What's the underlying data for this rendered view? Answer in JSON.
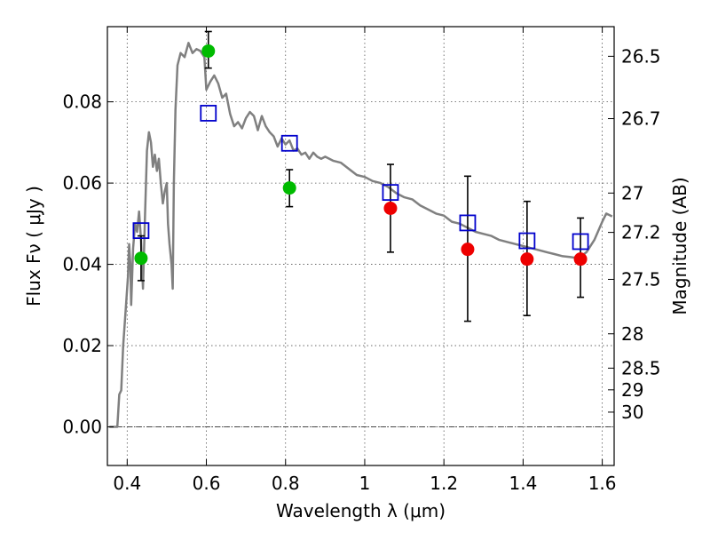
{
  "chart_data": {
    "type": "scatter",
    "xlabel": "Wavelength  λ (μm)",
    "ylabel": "Flux  Fν  ( μJy )",
    "y2label": "Magnitude (AB)",
    "xlim": [
      0.35,
      1.63
    ],
    "ylim": [
      -0.0095,
      0.0985
    ],
    "grid": true,
    "x_ticks": [
      0.4,
      0.6,
      0.8,
      1.0,
      1.2,
      1.4,
      1.6
    ],
    "x_tick_labels": [
      "0.4",
      "0.6",
      "0.8",
      "1",
      "1.2",
      "1.4",
      "1.6"
    ],
    "y_ticks": [
      0.0,
      0.02,
      0.04,
      0.06,
      0.08
    ],
    "y_tick_labels": [
      "0.00",
      "0.02",
      "0.04",
      "0.06",
      "0.08"
    ],
    "y2_ticks": [
      {
        "label": "26.5",
        "value": 26.5
      },
      {
        "label": "26.7",
        "value": 26.7
      },
      {
        "label": "27",
        "value": 27.0
      },
      {
        "label": "27.2",
        "value": 27.2
      },
      {
        "label": "27.5",
        "value": 27.5
      },
      {
        "label": "28",
        "value": 28.0
      },
      {
        "label": "28.5",
        "value": 28.5
      },
      {
        "label": "29",
        "value": 29.0
      },
      {
        "label": "30",
        "value": 30.0
      }
    ],
    "colors": {
      "model": "#808080",
      "model_points": "#0000cc",
      "green_points": "#00bb00",
      "red_points": "#ee0000",
      "errorbar": "#000000",
      "grid": "#555555"
    },
    "series": [
      {
        "kind": "line",
        "color": "#808080",
        "points": [
          [
            0.355,
            0.0
          ],
          [
            0.375,
            0.0
          ],
          [
            0.38,
            0.008
          ],
          [
            0.385,
            0.009
          ],
          [
            0.39,
            0.02
          ],
          [
            0.397,
            0.03
          ],
          [
            0.402,
            0.037
          ],
          [
            0.405,
            0.045
          ],
          [
            0.408,
            0.04
          ],
          [
            0.41,
            0.03
          ],
          [
            0.415,
            0.044
          ],
          [
            0.42,
            0.05
          ],
          [
            0.425,
            0.048
          ],
          [
            0.43,
            0.053
          ],
          [
            0.435,
            0.046
          ],
          [
            0.44,
            0.034
          ],
          [
            0.445,
            0.052
          ],
          [
            0.45,
            0.068
          ],
          [
            0.455,
            0.0725
          ],
          [
            0.46,
            0.07
          ],
          [
            0.465,
            0.064
          ],
          [
            0.47,
            0.067
          ],
          [
            0.475,
            0.063
          ],
          [
            0.48,
            0.066
          ],
          [
            0.485,
            0.06
          ],
          [
            0.49,
            0.055
          ],
          [
            0.495,
            0.058
          ],
          [
            0.5,
            0.06
          ],
          [
            0.503,
            0.05
          ],
          [
            0.507,
            0.045
          ],
          [
            0.512,
            0.04
          ],
          [
            0.515,
            0.034
          ],
          [
            0.518,
            0.06
          ],
          [
            0.522,
            0.078
          ],
          [
            0.527,
            0.089
          ],
          [
            0.535,
            0.092
          ],
          [
            0.545,
            0.091
          ],
          [
            0.555,
            0.0945
          ],
          [
            0.565,
            0.092
          ],
          [
            0.575,
            0.093
          ],
          [
            0.585,
            0.0925
          ],
          [
            0.595,
            0.091
          ],
          [
            0.6,
            0.083
          ],
          [
            0.61,
            0.085
          ],
          [
            0.62,
            0.0865
          ],
          [
            0.63,
            0.0845
          ],
          [
            0.64,
            0.081
          ],
          [
            0.65,
            0.082
          ],
          [
            0.66,
            0.077
          ],
          [
            0.67,
            0.074
          ],
          [
            0.68,
            0.075
          ],
          [
            0.69,
            0.0735
          ],
          [
            0.7,
            0.076
          ],
          [
            0.71,
            0.0775
          ],
          [
            0.72,
            0.0765
          ],
          [
            0.73,
            0.073
          ],
          [
            0.74,
            0.0765
          ],
          [
            0.75,
            0.074
          ],
          [
            0.76,
            0.0725
          ],
          [
            0.77,
            0.0715
          ],
          [
            0.78,
            0.069
          ],
          [
            0.79,
            0.071
          ],
          [
            0.8,
            0.0695
          ],
          [
            0.81,
            0.0705
          ],
          [
            0.82,
            0.068
          ],
          [
            0.83,
            0.0685
          ],
          [
            0.84,
            0.067
          ],
          [
            0.85,
            0.0675
          ],
          [
            0.86,
            0.066
          ],
          [
            0.87,
            0.0675
          ],
          [
            0.88,
            0.0665
          ],
          [
            0.89,
            0.066
          ],
          [
            0.9,
            0.0665
          ],
          [
            0.92,
            0.0655
          ],
          [
            0.94,
            0.065
          ],
          [
            0.96,
            0.0635
          ],
          [
            0.98,
            0.062
          ],
          [
            1.0,
            0.0615
          ],
          [
            1.02,
            0.0605
          ],
          [
            1.04,
            0.06
          ],
          [
            1.06,
            0.059
          ],
          [
            1.08,
            0.0575
          ],
          [
            1.1,
            0.0565
          ],
          [
            1.12,
            0.056
          ],
          [
            1.14,
            0.0545
          ],
          [
            1.16,
            0.0535
          ],
          [
            1.18,
            0.0525
          ],
          [
            1.2,
            0.052
          ],
          [
            1.22,
            0.0505
          ],
          [
            1.24,
            0.05
          ],
          [
            1.26,
            0.049
          ],
          [
            1.28,
            0.048
          ],
          [
            1.3,
            0.0475
          ],
          [
            1.32,
            0.047
          ],
          [
            1.34,
            0.046
          ],
          [
            1.36,
            0.0455
          ],
          [
            1.38,
            0.045
          ],
          [
            1.4,
            0.0445
          ],
          [
            1.42,
            0.044
          ],
          [
            1.44,
            0.0435
          ],
          [
            1.46,
            0.043
          ],
          [
            1.48,
            0.0425
          ],
          [
            1.5,
            0.042
          ],
          [
            1.52,
            0.0418
          ],
          [
            1.54,
            0.0415
          ],
          [
            1.56,
            0.043
          ],
          [
            1.58,
            0.046
          ],
          [
            1.6,
            0.0505
          ],
          [
            1.61,
            0.0525
          ],
          [
            1.625,
            0.0518
          ]
        ]
      },
      {
        "kind": "open-square",
        "color": "#0000cc",
        "points": [
          [
            0.435,
            0.0483
          ],
          [
            0.605,
            0.0772
          ],
          [
            0.81,
            0.0698
          ],
          [
            1.065,
            0.0577
          ],
          [
            1.26,
            0.0502
          ],
          [
            1.41,
            0.0458
          ],
          [
            1.545,
            0.0456
          ]
        ]
      },
      {
        "kind": "filled-circle",
        "color": "#00bb00",
        "points": [
          {
            "x": 0.435,
            "y": 0.0415,
            "yerr": [
              0.036,
              0.047
            ]
          },
          {
            "x": 0.605,
            "y": 0.0925,
            "yerr": [
              0.0883,
              0.0973
            ]
          },
          {
            "x": 0.81,
            "y": 0.0588,
            "yerr": [
              0.0542,
              0.0633
            ]
          }
        ]
      },
      {
        "kind": "filled-circle",
        "color": "#ee0000",
        "points": [
          {
            "x": 1.065,
            "y": 0.0538,
            "yerr": [
              0.043,
              0.0646
            ]
          },
          {
            "x": 1.26,
            "y": 0.0437,
            "yerr": [
              0.026,
              0.0617
            ]
          },
          {
            "x": 1.41,
            "y": 0.0413,
            "yerr": [
              0.0274,
              0.0555
            ]
          },
          {
            "x": 1.545,
            "y": 0.0413,
            "yerr": [
              0.0319,
              0.0514
            ]
          }
        ]
      }
    ]
  }
}
